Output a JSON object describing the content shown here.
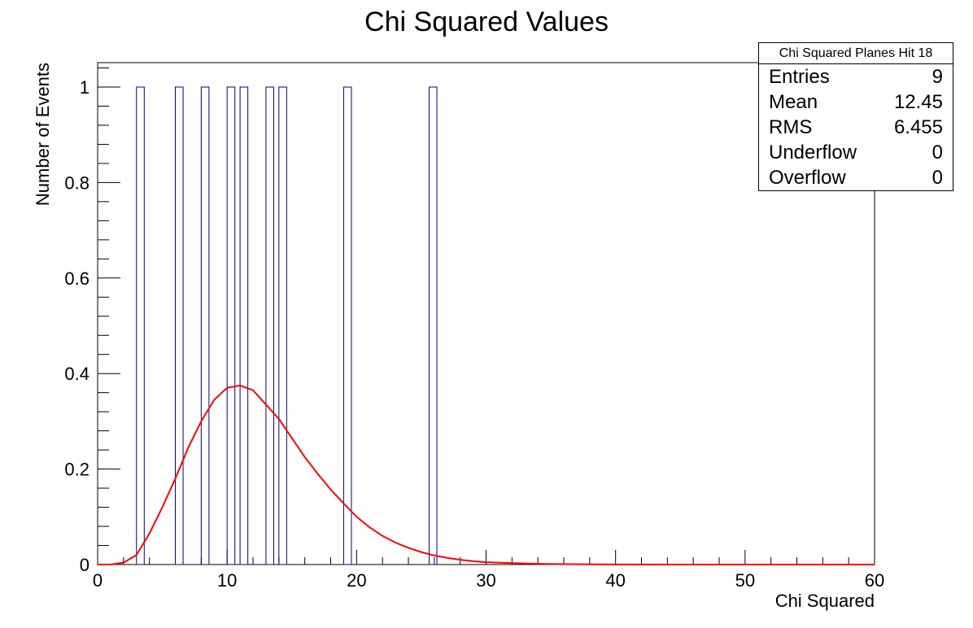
{
  "chart_data": {
    "type": "histogram",
    "title": "Chi Squared Values",
    "xlabel": "Chi Squared",
    "ylabel": "Number of Events",
    "xlim": [
      0,
      60
    ],
    "ylim": [
      0,
      1.05
    ],
    "x_ticks": [
      "0",
      "10",
      "20",
      "30",
      "40",
      "50",
      "60"
    ],
    "y_ticks": [
      "0",
      "0.2",
      "0.4",
      "0.6",
      "0.8",
      "1"
    ],
    "bin_width": 0.6,
    "bins": [
      {
        "x_low": 3.0,
        "x_high": 3.6,
        "count": 1
      },
      {
        "x_low": 6.0,
        "x_high": 6.6,
        "count": 1
      },
      {
        "x_low": 8.0,
        "x_high": 8.6,
        "count": 1
      },
      {
        "x_low": 10.0,
        "x_high": 10.6,
        "count": 1
      },
      {
        "x_low": 11.0,
        "x_high": 11.6,
        "count": 1
      },
      {
        "x_low": 13.0,
        "x_high": 13.6,
        "count": 1
      },
      {
        "x_low": 14.0,
        "x_high": 14.6,
        "count": 1
      },
      {
        "x_low": 19.0,
        "x_high": 19.6,
        "count": 1
      },
      {
        "x_low": 25.6,
        "x_high": 26.2,
        "count": 1
      }
    ],
    "fit_curve": {
      "color": "#ff0000",
      "points": [
        [
          0,
          0
        ],
        [
          1,
          0.0
        ],
        [
          2,
          0.004
        ],
        [
          3,
          0.02
        ],
        [
          4,
          0.065
        ],
        [
          5,
          0.12
        ],
        [
          6,
          0.18
        ],
        [
          7,
          0.245
        ],
        [
          8,
          0.3
        ],
        [
          9,
          0.345
        ],
        [
          10,
          0.37
        ],
        [
          11,
          0.375
        ],
        [
          12,
          0.365
        ],
        [
          13,
          0.335
        ],
        [
          14,
          0.305
        ],
        [
          15,
          0.265
        ],
        [
          16,
          0.225
        ],
        [
          17,
          0.19
        ],
        [
          18,
          0.157
        ],
        [
          19,
          0.128
        ],
        [
          20,
          0.1
        ],
        [
          21,
          0.078
        ],
        [
          22,
          0.06
        ],
        [
          23,
          0.046
        ],
        [
          24,
          0.035
        ],
        [
          25,
          0.026
        ],
        [
          26,
          0.019
        ],
        [
          27,
          0.014
        ],
        [
          28,
          0.01
        ],
        [
          29,
          0.007
        ],
        [
          30,
          0.005
        ],
        [
          32,
          0.003
        ],
        [
          34,
          0.0015
        ],
        [
          36,
          0.0008
        ],
        [
          40,
          0.0002
        ],
        [
          45,
          0.0
        ],
        [
          50,
          0.0
        ],
        [
          60,
          0.0
        ]
      ]
    },
    "histogram_color": "#000080",
    "grid": false,
    "legend": "none"
  },
  "stats": {
    "title": "Chi Squared Planes Hit 18",
    "rows": [
      {
        "key": "Entries",
        "value": "9"
      },
      {
        "key": "Mean",
        "value": "12.45"
      },
      {
        "key": "RMS",
        "value": "6.455"
      },
      {
        "key": "Underflow",
        "value": "0"
      },
      {
        "key": "Overflow",
        "value": "0"
      }
    ]
  }
}
